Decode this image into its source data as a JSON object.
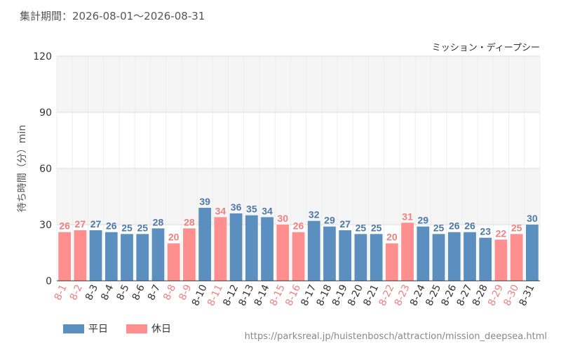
{
  "header": {
    "period": "集計期間：2026-08-01〜2026-08-31"
  },
  "footer": {
    "source": "https://parksreal.jp/huistenbosch/attraction/mission_deepsea.html"
  },
  "legend": {
    "weekday_label": "平日",
    "holiday_label": "休日"
  },
  "colors": {
    "weekday": "#5b8fbf",
    "holiday": "#ff8f8f",
    "weekday_label": "#4d79a8",
    "holiday_label": "#f07f7f",
    "band": "#f5f5f5",
    "grid_major": "#dddddd",
    "grid_minor": "#eeeeee"
  },
  "chart_data": {
    "type": "bar",
    "title": "ミッション・ディープシー",
    "xlabel": "",
    "ylabel": "待ち時間（分）min",
    "ylim": [
      0,
      120
    ],
    "yticks": [
      0,
      30,
      60,
      90,
      120
    ],
    "grid": true,
    "legend_position": "bottom-left",
    "categories": [
      "8-1",
      "8-2",
      "8-3",
      "8-4",
      "8-5",
      "8-6",
      "8-7",
      "8-8",
      "8-9",
      "8-10",
      "8-11",
      "8-12",
      "8-13",
      "8-14",
      "8-15",
      "8-16",
      "8-17",
      "8-18",
      "8-19",
      "8-20",
      "8-21",
      "8-22",
      "8-23",
      "8-24",
      "8-25",
      "8-26",
      "8-27",
      "8-28",
      "8-29",
      "8-30",
      "8-31"
    ],
    "values": [
      26,
      27,
      27,
      26,
      25,
      25,
      28,
      20,
      28,
      39,
      34,
      36,
      35,
      34,
      30,
      26,
      32,
      29,
      27,
      25,
      25,
      20,
      31,
      29,
      25,
      26,
      26,
      23,
      22,
      25,
      30
    ],
    "day_type": [
      "holiday",
      "holiday",
      "weekday",
      "weekday",
      "weekday",
      "weekday",
      "weekday",
      "holiday",
      "holiday",
      "weekday",
      "holiday",
      "weekday",
      "weekday",
      "weekday",
      "holiday",
      "holiday",
      "weekday",
      "weekday",
      "weekday",
      "weekday",
      "weekday",
      "holiday",
      "holiday",
      "weekday",
      "weekday",
      "weekday",
      "weekday",
      "weekday",
      "holiday",
      "holiday",
      "weekday"
    ]
  }
}
